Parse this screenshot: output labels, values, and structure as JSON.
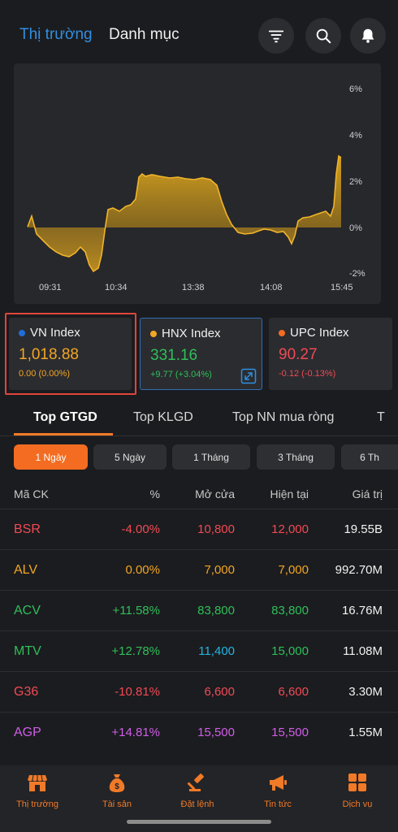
{
  "header": {
    "tabs": [
      {
        "label": "Thị trường",
        "active": true
      },
      {
        "label": "Danh mục",
        "active": false
      }
    ],
    "icons": [
      "filter-icon",
      "search-icon",
      "bell-icon"
    ]
  },
  "chart": {
    "y_ticks": [
      "6%",
      "4%",
      "2%",
      "0%",
      "-2%"
    ],
    "x_ticks": [
      "09:31",
      "10:34",
      "13:38",
      "14:08",
      "15:45"
    ],
    "fill_color": "#d8a01c"
  },
  "indices": [
    {
      "name": "VN Index",
      "value": "1,018.88",
      "change": "0.00 (0.00%)",
      "dot_color": "#1e6fd9",
      "value_color": "#f2a623",
      "selected": true
    },
    {
      "name": "HNX Index",
      "value": "331.16",
      "change": "+9.77 (+3.04%)",
      "dot_color": "#f2a623",
      "value_color": "#2fbf5a"
    },
    {
      "name": "UPC Index",
      "value": "90.27",
      "change": "-0.12 (-0.13%)",
      "dot_color": "#f36c21",
      "value_color": "#f04a55"
    }
  ],
  "top_tabs": [
    {
      "label": "Top GTGD",
      "active": true
    },
    {
      "label": "Top KLGD",
      "active": false
    },
    {
      "label": "Top NN mua ròng",
      "active": false
    },
    {
      "label": "T",
      "active": false
    }
  ],
  "periods": [
    {
      "label": "1 Ngày",
      "active": true
    },
    {
      "label": "5 Ngày",
      "active": false
    },
    {
      "label": "1 Tháng",
      "active": false
    },
    {
      "label": "3 Tháng",
      "active": false
    },
    {
      "label": "6 Th",
      "active": false
    }
  ],
  "table": {
    "headers": [
      "Mã CK",
      "%",
      "Mở cửa",
      "Hiện tại",
      "Giá trị"
    ],
    "rows": [
      {
        "symbol": "BSR",
        "pct": "-4.00%",
        "open": "10,800",
        "current": "12,000",
        "value": "19.55B",
        "sym_color": "#f04a55",
        "pct_color": "#f04a55",
        "open_color": "#f04a55",
        "cur_color": "#f04a55"
      },
      {
        "symbol": "ALV",
        "pct": "0.00%",
        "open": "7,000",
        "current": "7,000",
        "value": "992.70M",
        "sym_color": "#f2a623",
        "pct_color": "#f2a623",
        "open_color": "#f2a623",
        "cur_color": "#f2a623"
      },
      {
        "symbol": "ACV",
        "pct": "+11.58%",
        "open": "83,800",
        "current": "83,800",
        "value": "16.76M",
        "sym_color": "#2fbf5a",
        "pct_color": "#2fbf5a",
        "open_color": "#2fbf5a",
        "cur_color": "#2fbf5a"
      },
      {
        "symbol": "MTV",
        "pct": "+12.78%",
        "open": "11,400",
        "current": "15,000",
        "value": "11.08M",
        "sym_color": "#2fbf5a",
        "pct_color": "#2fbf5a",
        "open_color": "#23b4e0",
        "cur_color": "#2fbf5a"
      },
      {
        "symbol": "G36",
        "pct": "-10.81%",
        "open": "6,600",
        "current": "6,600",
        "value": "3.30M",
        "sym_color": "#f04a55",
        "pct_color": "#f04a55",
        "open_color": "#f04a55",
        "cur_color": "#f04a55"
      },
      {
        "symbol": "AGP",
        "pct": "+14.81%",
        "open": "15,500",
        "current": "15,500",
        "value": "1.55M",
        "sym_color": "#d05ee8",
        "pct_color": "#d05ee8",
        "open_color": "#d05ee8",
        "cur_color": "#d05ee8"
      }
    ]
  },
  "bottom_nav": [
    {
      "label": "Thị trường",
      "icon": "store-icon"
    },
    {
      "label": "Tài sản",
      "icon": "money-bag-icon"
    },
    {
      "label": "Đặt lệnh",
      "icon": "gavel-icon"
    },
    {
      "label": "Tin tức",
      "icon": "megaphone-icon"
    },
    {
      "label": "Dịch vụ",
      "icon": "grid-icon"
    }
  ],
  "colors": {
    "accent": "#f36c21",
    "blue": "#2f8fe0",
    "nav": "#f07a28"
  }
}
